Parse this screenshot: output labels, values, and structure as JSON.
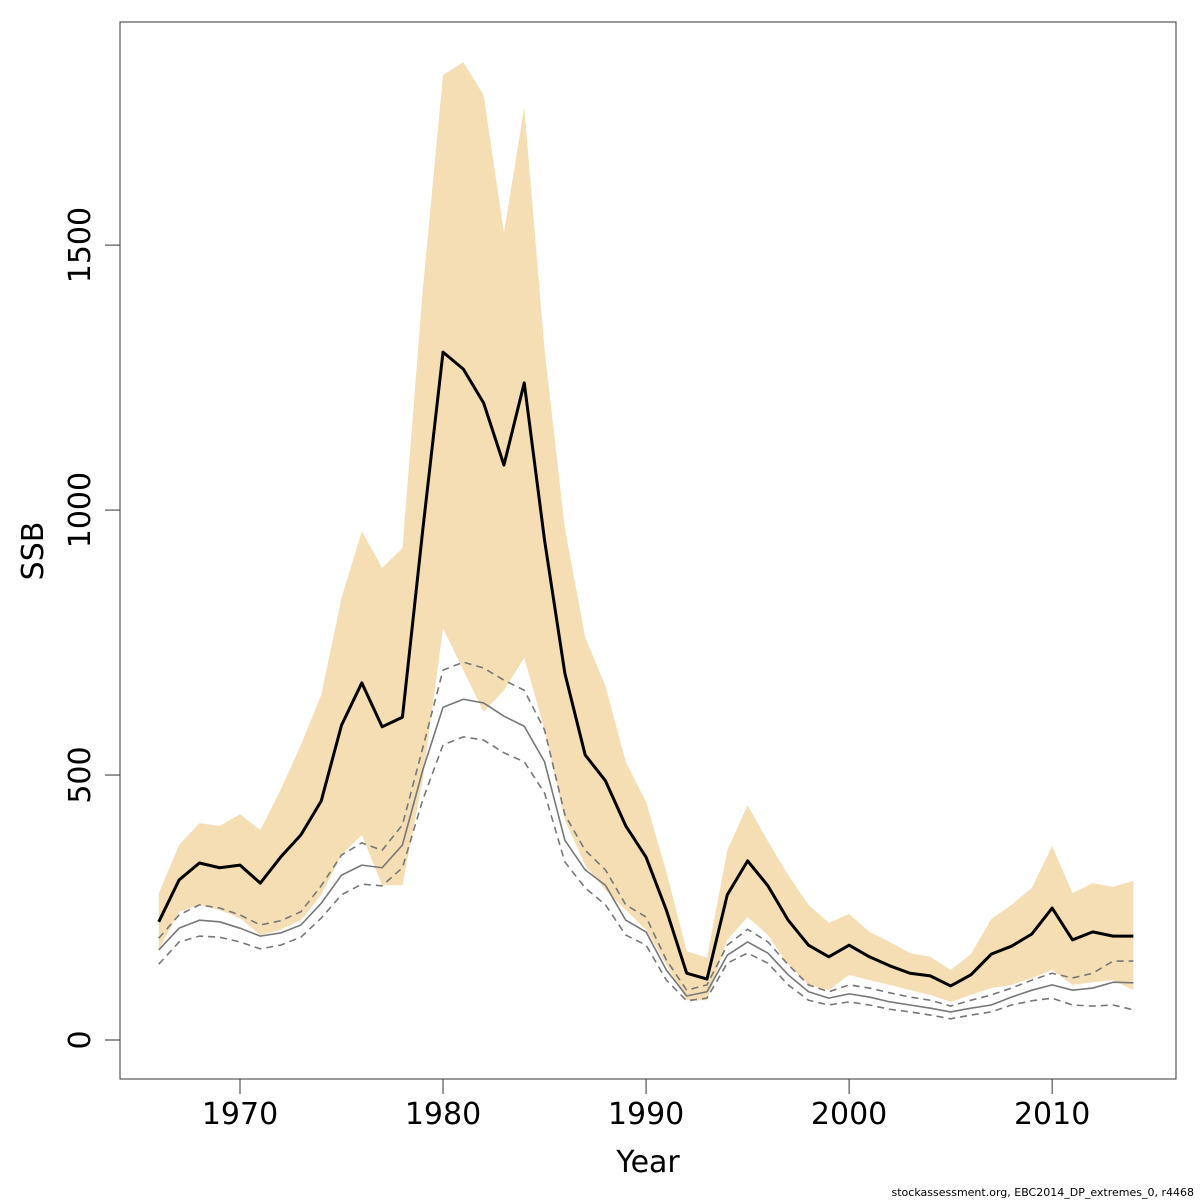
{
  "chart_data": {
    "type": "line",
    "xlabel": "Year",
    "ylabel": "SSB",
    "footnote": "stockassessment.org, EBC2014_DP_extremes_0, r4468",
    "x": [
      1966,
      1967,
      1968,
      1969,
      1970,
      1971,
      1972,
      1973,
      1974,
      1975,
      1976,
      1977,
      1978,
      1979,
      1980,
      1981,
      1982,
      1983,
      1984,
      1985,
      1986,
      1987,
      1988,
      1989,
      1990,
      1991,
      1992,
      1993,
      1994,
      1995,
      1996,
      1997,
      1998,
      1999,
      2000,
      2001,
      2002,
      2003,
      2004,
      2005,
      2006,
      2007,
      2008,
      2009,
      2010,
      2011,
      2012,
      2013,
      2014
    ],
    "band": {
      "color": "#f5deb3",
      "upper": [
        277,
        368,
        409,
        404,
        426,
        396,
        472,
        557,
        651,
        834,
        960,
        891,
        928,
        1415,
        1821,
        1845,
        1783,
        1523,
        1760,
        1302,
        966,
        760,
        668,
        525,
        449,
        317,
        168,
        155,
        358,
        443,
        375,
        311,
        255,
        221,
        238,
        204,
        185,
        164,
        157,
        132,
        162,
        228,
        255,
        287,
        366,
        277,
        296,
        289,
        300
      ],
      "lower": [
        170,
        242,
        255,
        245,
        230,
        198,
        208,
        226,
        274,
        349,
        387,
        292,
        292,
        491,
        777,
        698,
        619,
        660,
        721,
        585,
        415,
        330,
        283,
        245,
        208,
        142,
        75,
        75,
        189,
        232,
        198,
        142,
        104,
        94,
        123,
        113,
        104,
        94,
        85,
        72,
        85,
        98,
        104,
        117,
        132,
        104,
        109,
        113,
        94
      ]
    },
    "series": [
      {
        "color": "#000000",
        "style": "solid",
        "width": 3,
        "values": [
          223,
          302,
          334,
          325,
          330,
          296,
          345,
          387,
          451,
          594,
          674,
          591,
          609,
          962,
          1298,
          1266,
          1202,
          1085,
          1240,
          943,
          692,
          538,
          489,
          404,
          345,
          245,
          126,
          115,
          274,
          338,
          291,
          226,
          179,
          157,
          179,
          157,
          140,
          126,
          121,
          102,
          123,
          162,
          177,
          200,
          249,
          189,
          204,
          196,
          196
        ]
      },
      {
        "color": "#777777",
        "style": "solid",
        "width": 1.6,
        "values": [
          170,
          211,
          226,
          223,
          211,
          196,
          202,
          217,
          258,
          311,
          330,
          325,
          368,
          509,
          628,
          643,
          636,
          611,
          592,
          525,
          377,
          321,
          292,
          226,
          204,
          132,
          83,
          91,
          160,
          185,
          164,
          123,
          91,
          79,
          87,
          81,
          72,
          66,
          60,
          53,
          60,
          66,
          81,
          94,
          104,
          94,
          98,
          109,
          108
        ]
      },
      {
        "color": "#777777",
        "style": "dashed",
        "width": 1.6,
        "values": [
          192,
          236,
          255,
          249,
          236,
          217,
          225,
          242,
          291,
          349,
          372,
          358,
          406,
          551,
          698,
          713,
          702,
          679,
          660,
          585,
          425,
          358,
          321,
          255,
          232,
          151,
          94,
          104,
          179,
          209,
          185,
          142,
          104,
          91,
          104,
          98,
          89,
          81,
          75,
          64,
          75,
          85,
          98,
          113,
          126,
          117,
          126,
          149,
          149
        ]
      },
      {
        "color": "#777777",
        "style": "dashed",
        "width": 1.6,
        "values": [
          143,
          185,
          196,
          194,
          185,
          172,
          179,
          194,
          230,
          274,
          294,
          291,
          325,
          453,
          557,
          572,
          566,
          542,
          525,
          466,
          336,
          287,
          255,
          198,
          179,
          113,
          74,
          79,
          145,
          164,
          145,
          104,
          75,
          66,
          72,
          66,
          58,
          53,
          47,
          40,
          47,
          53,
          66,
          74,
          79,
          66,
          64,
          66,
          57
        ]
      }
    ],
    "xlim": [
      1964.09,
      2016.1
    ],
    "ylim": [
      -73.6,
      1921
    ],
    "xticks": [
      1970,
      1980,
      1990,
      2000,
      2010
    ],
    "yticks": [
      0,
      500,
      1000,
      1500
    ],
    "box": true
  }
}
